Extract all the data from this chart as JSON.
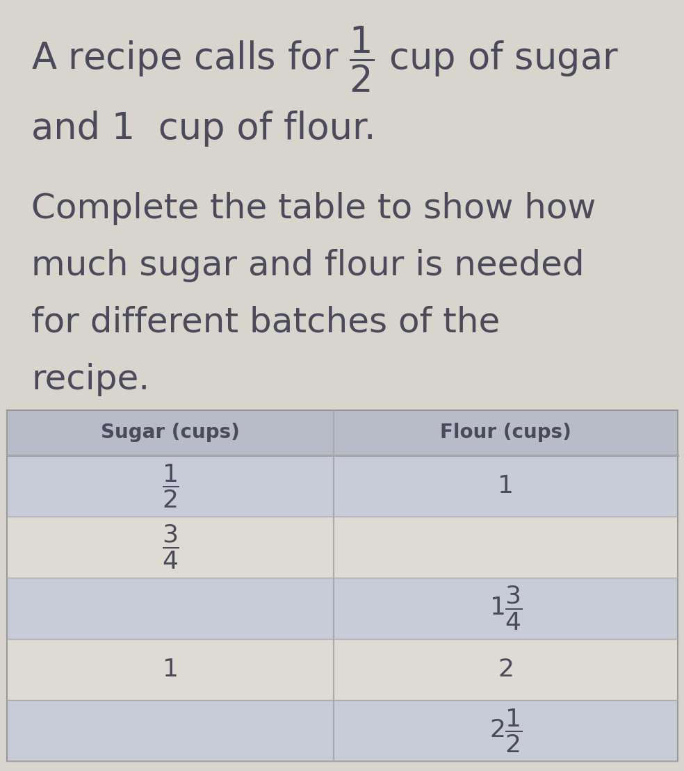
{
  "background_color": "#d8d4ce",
  "text_color": "#4a4a5a",
  "col1_header": "Sugar (cups)",
  "col2_header": "Flour (cups)",
  "table_header_bg": "#b8bcc8",
  "table_row_bg_dark": "#c8ccd8",
  "table_row_bg_light": "#dedad4",
  "rows": [
    {
      "sugar": "\\frac{1}{2}",
      "flour": "1"
    },
    {
      "sugar": "\\frac{3}{4}",
      "flour": ""
    },
    {
      "sugar": "",
      "flour": "1\\frac{3}{4}"
    },
    {
      "sugar": "1",
      "flour": "2"
    },
    {
      "sugar": "",
      "flour": "2\\frac{1}{2}"
    }
  ],
  "font_size_title": 38,
  "font_size_subtitle": 36,
  "font_size_header": 20,
  "font_size_cell": 26,
  "fig_width": 9.84,
  "fig_height": 11.09,
  "dpi": 100
}
